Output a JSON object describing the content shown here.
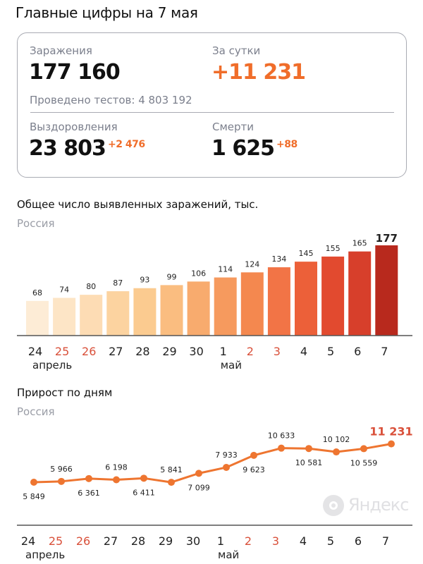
{
  "header": {
    "title": "Главные цифры на 7 мая"
  },
  "summary": {
    "infections_label": "Заражения",
    "infections_value": "177 160",
    "daily_label": "За сутки",
    "daily_value": "+11 231",
    "tests_text": "Проведено тестов: 4 803 192",
    "recoveries_label": "Выздоровления",
    "recoveries_value": "23 803",
    "recoveries_delta": "+2 476",
    "deaths_label": "Смерти",
    "deaths_value": "1 625",
    "deaths_delta": "+88"
  },
  "colors": {
    "accent": "#f06d2a",
    "weekend": "#d9503a",
    "text": "#111111",
    "muted": "#9a9da6"
  },
  "watermark": {
    "text": "Яндекс",
    "icon": "yandex-logo-icon"
  },
  "chart_data": [
    {
      "type": "bar",
      "title": "Общее число выявленных заражений, тыс.",
      "subtitle": "Россия",
      "categories": [
        "24",
        "25",
        "26",
        "27",
        "28",
        "29",
        "30",
        "1",
        "2",
        "3",
        "4",
        "5",
        "6",
        "7"
      ],
      "month_labels": [
        {
          "at": "24",
          "text": "апрель"
        },
        {
          "at": "1",
          "text": "май"
        }
      ],
      "weekend_categories": [
        "25",
        "26",
        "2",
        "3"
      ],
      "values": [
        68,
        74,
        80,
        87,
        93,
        99,
        106,
        114,
        124,
        134,
        145,
        155,
        165,
        177
      ],
      "bar_colors": [
        "#fdecd6",
        "#fde5c6",
        "#fddcb4",
        "#fcd3a0",
        "#fbcb90",
        "#fabd80",
        "#f8ab6e",
        "#f69a5e",
        "#f4884f",
        "#f27446",
        "#ec6039",
        "#e24a2f",
        "#d73f2b",
        "#b8291d"
      ],
      "ylim": [
        0,
        177
      ]
    },
    {
      "type": "line",
      "title": "Прирост по дням",
      "subtitle": "Россия",
      "categories": [
        "24",
        "25",
        "26",
        "27",
        "28",
        "29",
        "30",
        "1",
        "2",
        "3",
        "4",
        "5",
        "6",
        "7"
      ],
      "month_labels": [
        {
          "at": "24",
          "text": "апрель"
        },
        {
          "at": "1",
          "text": "май"
        }
      ],
      "weekend_categories": [
        "25",
        "26",
        "2",
        "3"
      ],
      "values": [
        5849,
        5966,
        6361,
        6198,
        6411,
        5841,
        7099,
        7933,
        9623,
        10633,
        10581,
        10102,
        10559,
        11231
      ],
      "labels": [
        "5 849",
        "5 966",
        "6 361",
        "6 198",
        "6 411",
        "5 841",
        "7 099",
        "7 933",
        "9 623",
        "10 633",
        "10 581",
        "10 102",
        "10 559",
        "11 231"
      ],
      "line_color": "#ee7530"
    }
  ]
}
